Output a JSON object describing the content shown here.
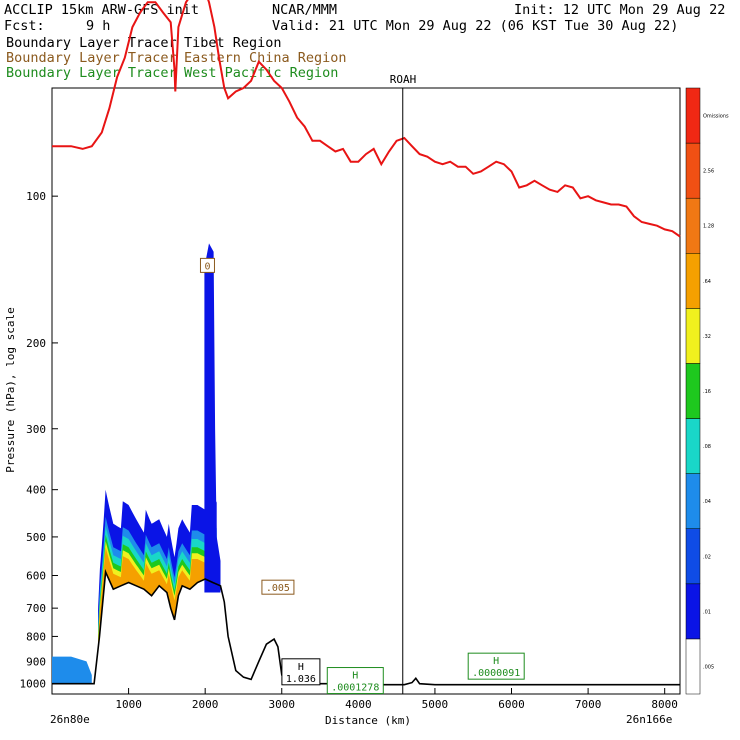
{
  "header": {
    "model": "ACCLIP 15km ARW-GFS init",
    "org": "NCAR/MMM",
    "init": "Init: 12 UTC Mon 29 Aug 22",
    "fcst_label": "Fcst:",
    "fcst_value": "9 h",
    "valid": "Valid: 21 UTC Mon 29 Aug 22 (06 KST Tue 30 Aug 22)"
  },
  "tracers": [
    {
      "label": "Boundary Layer Tracer",
      "region": "Tibet Region",
      "color": "#000000"
    },
    {
      "label": "Boundary Layer Tracer",
      "region": "Eastern China Region",
      "color": "#8b5a1e"
    },
    {
      "label": "Boundary Layer Tracer",
      "region": "West Pacific Region",
      "color": "#1e8c1e"
    }
  ],
  "chart_data": {
    "type": "cross-section",
    "xlabel": "Distance (km)",
    "ylabel": "Pressure (hPa), log scale",
    "xlim": [
      0,
      8200
    ],
    "ylim_hpa": [
      1050,
      60
    ],
    "y_scale": "log",
    "x_ticks": [
      1000,
      2000,
      3000,
      4000,
      5000,
      6000,
      7000,
      8000
    ],
    "y_ticks": [
      100,
      200,
      300,
      400,
      500,
      600,
      700,
      800,
      900,
      1000
    ],
    "left_end_label": "26n80e",
    "right_end_label": "26n166e",
    "station": {
      "name": "ROAH",
      "x": 4580
    },
    "tropopause_hpa": {
      "x": [
        0,
        250,
        400,
        520,
        650,
        750,
        850,
        950,
        1050,
        1150,
        1250,
        1350,
        1450,
        1550,
        1600,
        1610,
        1650,
        1750,
        1850,
        1950,
        2050,
        2120,
        2180,
        2250,
        2300,
        2400,
        2500,
        2600,
        2700,
        2800,
        2900,
        3000,
        3100,
        3200,
        3300,
        3400,
        3500,
        3600,
        3700,
        3800,
        3900,
        4000,
        4100,
        4200,
        4300,
        4400,
        4500,
        4600,
        4700,
        4800,
        4900,
        5000,
        5100,
        5200,
        5300,
        5400,
        5500,
        5600,
        5700,
        5800,
        5900,
        6000,
        6100,
        6200,
        6300,
        6400,
        6500,
        6600,
        6700,
        6800,
        6900,
        7000,
        7100,
        7200,
        7300,
        7400,
        7500,
        7600,
        7700,
        7800,
        7900,
        8000,
        8100,
        8200
      ],
      "p": [
        79,
        79,
        80,
        79,
        74,
        66,
        57,
        52,
        45,
        42,
        40,
        40,
        42,
        44,
        55,
        61,
        45,
        40,
        38,
        36,
        40,
        45,
        52,
        60,
        63,
        61,
        60,
        58,
        53,
        55,
        58,
        60,
        64,
        69,
        72,
        77,
        77,
        79,
        81,
        80,
        85,
        85,
        82,
        80,
        86,
        81,
        77,
        76,
        79,
        82,
        83,
        85,
        86,
        85,
        87,
        87,
        90,
        89,
        87,
        85,
        86,
        89,
        96,
        95,
        93,
        95,
        97,
        98,
        95,
        96,
        101,
        100,
        102,
        103,
        104,
        104,
        105,
        110,
        113,
        114,
        115,
        117,
        118,
        121
      ]
    },
    "terrain_hpa": {
      "x": [
        0,
        200,
        400,
        550,
        620,
        700,
        800,
        900,
        1000,
        1100,
        1200,
        1300,
        1400,
        1500,
        1550,
        1600,
        1650,
        1700,
        1800,
        1900,
        2000,
        2100,
        2200,
        2250,
        2300,
        2400,
        2500,
        2600,
        2700,
        2800,
        2900,
        2950,
        3000,
        3100,
        3200,
        3300,
        3400,
        3500,
        3600,
        3700,
        3800,
        3900,
        4000,
        4200,
        4400,
        4600,
        4700,
        4750,
        4800,
        5000,
        6000,
        7000,
        8000,
        8200
      ],
      "p": [
        1000,
        1000,
        1000,
        1000,
        800,
        590,
        640,
        630,
        620,
        630,
        640,
        660,
        630,
        650,
        700,
        740,
        660,
        630,
        640,
        620,
        610,
        620,
        630,
        680,
        800,
        940,
        970,
        980,
        900,
        830,
        810,
        840,
        960,
        985,
        995,
        1000,
        1000,
        1000,
        1000,
        1000,
        1000,
        1005,
        1005,
        1005,
        1005,
        1005,
        995,
        975,
        1000,
        1005,
        1005,
        1005,
        1005,
        1005
      ]
    },
    "h_labels": [
      {
        "letter": "H",
        "value": "1.036",
        "x": 3250,
        "p": 950,
        "color": "#000000"
      },
      {
        "letter": "H",
        "value": ".0001278",
        "x": 3960,
        "p": 990,
        "color": "#1e8c1e"
      },
      {
        "letter": "H",
        "value": ".0000091",
        "x": 5800,
        "p": 925,
        "color": "#1e8c1e"
      }
    ],
    "value_boxes": [
      {
        "value": ".005",
        "x": 2950,
        "p": 640,
        "color": "#8b5a1e"
      },
      {
        "value": "0",
        "x": 2030,
        "p": 140,
        "color": "#8b5a1e"
      }
    ],
    "colorbar": {
      "levels": [
        ".005",
        ".01",
        ".02",
        ".04",
        ".08",
        ".16",
        ".32",
        ".64",
        "1.28",
        "2.56",
        "Omissions"
      ],
      "colors": [
        "#ffffff",
        "#0a14e6",
        "#0f4ce6",
        "#1e8ceb",
        "#19d7c8",
        "#1ec81e",
        "#f0f01e",
        "#f5a000",
        "#f07814",
        "#f05014",
        "#f02814"
      ]
    }
  }
}
